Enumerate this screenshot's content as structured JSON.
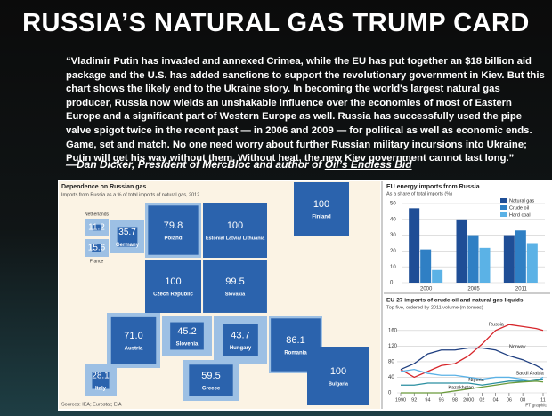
{
  "header": {
    "title": "RUSSIA’S NATURAL GAS TRUMP CARD"
  },
  "quote": "“Vladimir Putin has invaded and annexed Crimea, while the EU has put together an $18 billion aid package and the U.S. has added sanctions to support the revolutionary government in Kiev. But this chart shows the likely end to the Ukraine story. In becoming the world's largest natural gas producer, Russia now wields an unshakable influence over the economies of most of Eastern Europe and a significant part of Western Europe as well. Russia has successfully used the pipe valve spigot twice in the recent past — in 2006 and 2009 — for political as well as economic ends. Game, set and match. No one need worry about further Russian military incursions into Ukraine; Putin will get his way without them. Without heat, the new Kiev government cannot last long.”",
  "attribution": {
    "text": "—Dan Dicker, President of MercBloc and author of ",
    "book": "Oil’s Endless Bid"
  },
  "chart_data": [
    {
      "type": "square-map",
      "title": "Dependence on Russian gas",
      "subtitle": "Imports from Russia as a % of total imports of natural gas, 2012",
      "categories": [
        "Netherlands",
        "France",
        "Germany",
        "Poland",
        "Estonia/ Latvia/ Lithuania",
        "Finland",
        "Czech Republic",
        "Slovakia",
        "Austria",
        "Slovenia",
        "Hungary",
        "Romania",
        "Italy",
        "Greece",
        "Bulgaria"
      ],
      "values": [
        11.2,
        15.6,
        35.7,
        79.8,
        100,
        100,
        100,
        99.5,
        71.0,
        45.2,
        43.7,
        86.1,
        28.1,
        59.5,
        100
      ],
      "value_labels": [
        "11.2",
        "15.6",
        "35.7",
        "79.8",
        "100",
        "100",
        "100",
        "99.5",
        "71.0",
        "45.2",
        "43.7",
        "86.1",
        "28.1",
        "59.5",
        "100"
      ],
      "color": "#2b63ad",
      "source": "Sources: IEA; Eurostat; EIA"
    },
    {
      "type": "bar",
      "title": "EU energy imports from Russia",
      "subtitle": "As a share of total imports (%)",
      "categories": [
        "2000",
        "2005",
        "2011"
      ],
      "series": [
        {
          "name": "Natural gas",
          "color": "#1f4e96",
          "values": [
            47,
            40,
            30
          ]
        },
        {
          "name": "Crude oil",
          "color": "#2f7fc4",
          "values": [
            21,
            30,
            33
          ]
        },
        {
          "name": "Hard coal",
          "color": "#5bb2e6",
          "values": [
            8,
            22,
            25
          ]
        }
      ],
      "ylim": [
        0,
        50
      ],
      "yticks": [
        0,
        10,
        20,
        30,
        40,
        50
      ],
      "grid": true,
      "legend": "top-right"
    },
    {
      "type": "line",
      "title": "EU-27 imports of crude oil and natural gas liquids",
      "subtitle": "Top five, ordered by 2011 volume (m tonnes)",
      "x": [
        1990,
        1992,
        1994,
        1996,
        1998,
        2000,
        2002,
        2004,
        2006,
        2008,
        2010,
        2011
      ],
      "series": [
        {
          "name": "Russia",
          "color": "#d7262b",
          "values": [
            60,
            40,
            55,
            70,
            75,
            95,
            125,
            160,
            175,
            170,
            165,
            160
          ]
        },
        {
          "name": "Norway",
          "color": "#1f3f80",
          "values": [
            60,
            75,
            100,
            110,
            110,
            115,
            115,
            110,
            95,
            85,
            70,
            60
          ]
        },
        {
          "name": "Saudi Arabia",
          "color": "#5bb2e6",
          "values": [
            55,
            60,
            50,
            45,
            45,
            40,
            35,
            40,
            40,
            35,
            30,
            40
          ]
        },
        {
          "name": "Nigeria",
          "color": "#2a8fa0",
          "values": [
            20,
            20,
            25,
            25,
            25,
            25,
            20,
            25,
            30,
            30,
            35,
            35
          ]
        },
        {
          "name": "Kazakhstan",
          "color": "#6a9a3a",
          "values": [
            0,
            0,
            0,
            0,
            5,
            10,
            15,
            20,
            25,
            28,
            30,
            28
          ]
        }
      ],
      "xlim": [
        1990,
        2011
      ],
      "xticks": [
        1990,
        {
          "value": 1992,
          "label": "92"
        },
        {
          "value": 1994,
          "label": "94"
        },
        {
          "value": 1996,
          "label": "96"
        },
        {
          "value": 1998,
          "label": "98"
        },
        2000,
        {
          "value": 2002,
          "label": "02"
        },
        {
          "value": 2004,
          "label": "04"
        },
        {
          "value": 2006,
          "label": "06"
        },
        {
          "value": 2008,
          "label": "08"
        },
        {
          "value": 2011,
          "label": "11"
        }
      ],
      "ylim": [
        0,
        180
      ],
      "yticks": [
        0,
        40,
        80,
        120,
        160
      ],
      "grid": true,
      "source": "FT graphic"
    }
  ]
}
